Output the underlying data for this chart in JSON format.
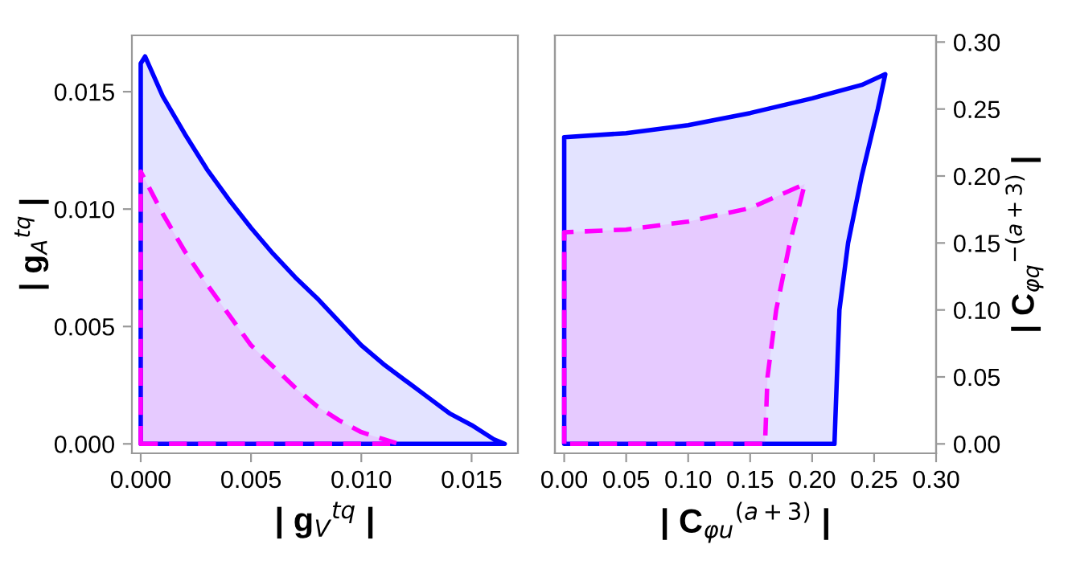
{
  "chart_data": [
    {
      "type": "area",
      "xlabel": "| g$_{V}$$^{tq}$ |",
      "ylabel": "| g$_{A}$$^{tq}$ |",
      "xlim": [
        -0.0004,
        0.0171
      ],
      "ylim": [
        -0.0004,
        0.0174
      ],
      "xticks": [
        {
          "value": 0,
          "label": "0.000"
        },
        {
          "value": 0.005,
          "label": "0.005"
        },
        {
          "value": 0.01,
          "label": "0.010"
        },
        {
          "value": 0.015,
          "label": "0.015"
        }
      ],
      "yticks": [
        {
          "value": 0,
          "label": "0.000"
        },
        {
          "value": 0.005,
          "label": "0.005"
        },
        {
          "value": 0.01,
          "label": "0.010"
        },
        {
          "value": 0.015,
          "label": "0.015"
        }
      ],
      "grid": false,
      "legend": false,
      "series": [
        {
          "color": "#0000ff",
          "line_style": "solid",
          "x": [
            0,
            0.0002,
            0.001,
            0.002,
            0.003,
            0.004,
            0.005,
            0.006,
            0.007,
            0.008,
            0.009,
            0.01,
            0.011,
            0.012,
            0.013,
            0.014,
            0.015,
            0.016,
            0.0165
          ],
          "values": [
            0.0162,
            0.0165,
            0.0148,
            0.0132,
            0.0117,
            0.0104,
            0.0092,
            0.0081,
            0.0071,
            0.0062,
            0.0052,
            0.0042,
            0.0034,
            0.0027,
            0.002,
            0.0013,
            0.0008,
            0.0002,
            0
          ]
        },
        {
          "color": "#ff00ff",
          "line_style": "dashed",
          "x": [
            0,
            0.001,
            0.002,
            0.003,
            0.004,
            0.005,
            0.006,
            0.007,
            0.008,
            0.009,
            0.01,
            0.011,
            0.0117
          ],
          "values": [
            0.0116,
            0.0098,
            0.0082,
            0.0068,
            0.0055,
            0.0042,
            0.0033,
            0.0024,
            0.0016,
            0.001,
            0.0005,
            0.0002,
            0
          ]
        }
      ]
    },
    {
      "type": "area",
      "xlabel": "| C$_{φu}$$^{(a+3)}$ |",
      "y2label": "| C$_{φq}$$^{−(a+3)}$ |",
      "xlim": [
        -0.0075,
        0.3
      ],
      "y2lim": [
        -0.007,
        0.305
      ],
      "xticks": [
        {
          "value": 0,
          "label": "0.00"
        },
        {
          "value": 0.05,
          "label": "0.05"
        },
        {
          "value": 0.1,
          "label": "0.10"
        },
        {
          "value": 0.15,
          "label": "0.15"
        },
        {
          "value": 0.2,
          "label": "0.20"
        },
        {
          "value": 0.25,
          "label": "0.25"
        },
        {
          "value": 0.3,
          "label": "0.30"
        }
      ],
      "y2ticks": [
        {
          "value": 0,
          "label": "0.00"
        },
        {
          "value": 0.05,
          "label": "0.05"
        },
        {
          "value": 0.1,
          "label": "0.10"
        },
        {
          "value": 0.15,
          "label": "0.15"
        },
        {
          "value": 0.2,
          "label": "0.20"
        },
        {
          "value": 0.25,
          "label": "0.25"
        },
        {
          "value": 0.3,
          "label": "0.30"
        }
      ],
      "grid": false,
      "legend": false,
      "series": [
        {
          "color": "#0000ff",
          "line_style": "solid",
          "axis": "y2",
          "x": [
            0,
            0,
            0.05,
            0.1,
            0.15,
            0.2,
            0.24,
            0.259,
            0.253,
            0.24,
            0.229,
            0.222,
            0.218
          ],
          "values": [
            0,
            0.229,
            0.232,
            0.238,
            0.247,
            0.258,
            0.268,
            0.276,
            0.25,
            0.2,
            0.15,
            0.1,
            0
          ]
        },
        {
          "color": "#ff00ff",
          "line_style": "dashed",
          "axis": "y2",
          "x": [
            0,
            0,
            0.05,
            0.1,
            0.15,
            0.194,
            0.182,
            0.171,
            0.164,
            0.162
          ],
          "values": [
            0,
            0.158,
            0.16,
            0.166,
            0.176,
            0.194,
            0.15,
            0.1,
            0.05,
            0
          ]
        }
      ]
    }
  ]
}
